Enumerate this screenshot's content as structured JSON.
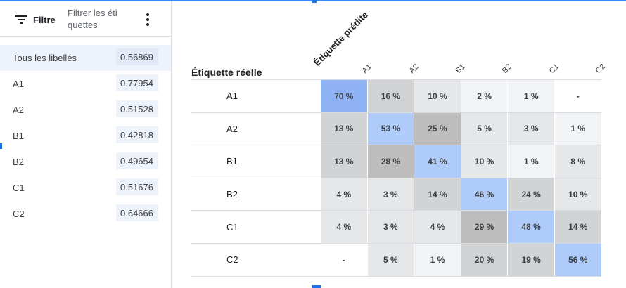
{
  "sidebar": {
    "filter_label": "Filtre",
    "filter_placeholder": "Filtrer les éti quettes",
    "items": [
      {
        "label": "Tous les libellés",
        "score": "0.56869",
        "selected": true
      },
      {
        "label": "A1",
        "score": "0.77954"
      },
      {
        "label": "A2",
        "score": "0.51528"
      },
      {
        "label": "B1",
        "score": "0.42818"
      },
      {
        "label": "B2",
        "score": "0.49654"
      },
      {
        "label": "C1",
        "score": "0.51676"
      },
      {
        "label": "C2",
        "score": "0.64666"
      }
    ]
  },
  "matrix": {
    "column_title": "Étiquette prédite",
    "row_title": "Étiquette réelle",
    "columns": [
      "A1",
      "A2",
      "B1",
      "B2",
      "C1",
      "C2"
    ],
    "rows": [
      {
        "label": "A1",
        "cells": [
          "70 %",
          "16 %",
          "10 %",
          "2 %",
          "1 %",
          "-"
        ]
      },
      {
        "label": "A2",
        "cells": [
          "13 %",
          "53 %",
          "25 %",
          "5 %",
          "3 %",
          "1 %"
        ]
      },
      {
        "label": "B1",
        "cells": [
          "13 %",
          "28 %",
          "41 %",
          "10 %",
          "1 %",
          "8 %"
        ]
      },
      {
        "label": "B2",
        "cells": [
          "4 %",
          "3 %",
          "14 %",
          "46 %",
          "24 %",
          "10 %"
        ]
      },
      {
        "label": "C1",
        "cells": [
          "4 %",
          "3 %",
          "4 %",
          "29 %",
          "48 %",
          "14 %"
        ]
      },
      {
        "label": "C2",
        "cells": [
          "-",
          "5 %",
          "1 %",
          "20 %",
          "19 %",
          "56 %"
        ]
      }
    ],
    "values": [
      [
        70,
        16,
        10,
        2,
        1,
        0
      ],
      [
        13,
        53,
        25,
        5,
        3,
        1
      ],
      [
        13,
        28,
        41,
        10,
        1,
        8
      ],
      [
        4,
        3,
        14,
        46,
        24,
        10
      ],
      [
        4,
        3,
        4,
        29,
        48,
        14
      ],
      [
        0,
        5,
        1,
        20,
        19,
        56
      ]
    ],
    "colors": {
      "diagonal_strong": "#8fb2f5",
      "diagonal_light": "#aecbfa",
      "off_high": "#bdbdbd",
      "off_mid": "#d2d3d5",
      "off_low": "#e6e7e8",
      "off_min": "#f1f3f4",
      "empty": "#ffffff"
    }
  }
}
